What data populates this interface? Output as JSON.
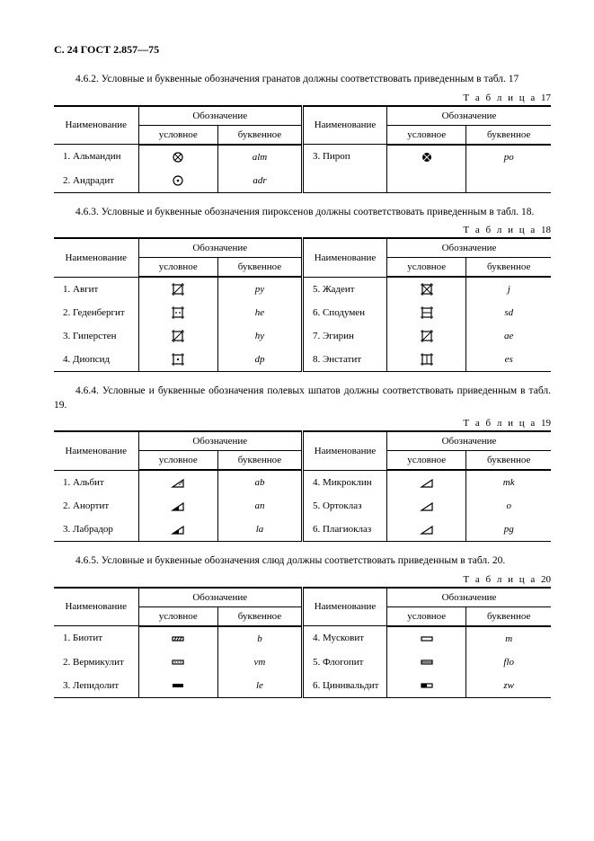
{
  "pageHeader": "С. 24 ГОСТ 2.857—75",
  "sections": [
    {
      "para": "4.6.2. Условные и буквенные обозначения гранатов должны соответствовать приведенным в табл. 17",
      "tableLabel": "Т а б л и ц а",
      "tableNum": "17",
      "headers": {
        "name": "Наименование",
        "group": "Обозначение",
        "cond": "условное",
        "letter": "буквенное"
      },
      "left": [
        {
          "name": "1. Альмандин",
          "sym": "alm-sym",
          "letter": "alm"
        },
        {
          "name": "2. Андрадит",
          "sym": "adr-sym",
          "letter": "adr"
        }
      ],
      "right": [
        {
          "name": "3. Пироп",
          "sym": "po-sym",
          "letter": "po"
        }
      ]
    },
    {
      "para": "4.6.3. Условные и буквенные обозначения пироксенов должны соответствовать приведенным в табл. 18.",
      "tableLabel": "Т а б л и ц а",
      "tableNum": "18",
      "headers": {
        "name": "Наименование",
        "group": "Обозначение",
        "cond": "условное",
        "letter": "буквенное"
      },
      "left": [
        {
          "name": "1. Авгит",
          "sym": "py-sym",
          "letter": "py"
        },
        {
          "name": "2. Геденбергит",
          "sym": "he-sym",
          "letter": "he"
        },
        {
          "name": "3. Гиперстен",
          "sym": "hy-sym",
          "letter": "hy"
        },
        {
          "name": "4. Диопсид",
          "sym": "dp-sym",
          "letter": "dp"
        }
      ],
      "right": [
        {
          "name": "5. Жадеит",
          "sym": "j-sym",
          "letter": "j"
        },
        {
          "name": "6. Сподумен",
          "sym": "sd-sym",
          "letter": "sd"
        },
        {
          "name": "7. Эгирин",
          "sym": "ae-sym",
          "letter": "ae"
        },
        {
          "name": "8. Энстатит",
          "sym": "es-sym",
          "letter": "es"
        }
      ]
    },
    {
      "para": "4.6.4. Условные и буквенные обозначения полевых шпатов должны соответствовать приведенным в табл. 19.",
      "tableLabel": "Т а б л и ц а",
      "tableNum": "19",
      "headers": {
        "name": "Наименование",
        "group": "Обозначение",
        "cond": "условное",
        "letter": "буквенное"
      },
      "left": [
        {
          "name": "1. Альбит",
          "sym": "ab-sym",
          "letter": "ab"
        },
        {
          "name": "2. Анортит",
          "sym": "an-sym",
          "letter": "an"
        },
        {
          "name": "3. Лабрадор",
          "sym": "la-sym",
          "letter": "la"
        }
      ],
      "right": [
        {
          "name": "4. Микроклин",
          "sym": "mk-sym",
          "letter": "mk"
        },
        {
          "name": "5. Ортоклаз",
          "sym": "o-sym",
          "letter": "o"
        },
        {
          "name": "6. Плагиоклаз",
          "sym": "pg-sym",
          "letter": "pg"
        }
      ]
    },
    {
      "para": "4.6.5. Условные и буквенные обозначения слюд должны соответствовать приведенным в табл. 20.",
      "tableLabel": "Т а б л и ц а",
      "tableNum": "20",
      "headers": {
        "name": "Наименование",
        "group": "Обозначение",
        "cond": "условное",
        "letter": "буквенное"
      },
      "left": [
        {
          "name": "1. Биотит",
          "sym": "b-sym",
          "letter": "b"
        },
        {
          "name": "2. Вермикулит",
          "sym": "vm-sym",
          "letter": "vm"
        },
        {
          "name": "3. Лепидолит",
          "sym": "le-sym",
          "letter": "le"
        }
      ],
      "right": [
        {
          "name": "4. Мусковит",
          "sym": "m-sym",
          "letter": "m"
        },
        {
          "name": "5. Флогопит",
          "sym": "flo-sym",
          "letter": "flo"
        },
        {
          "name": "6. Циннвальдит",
          "sym": "zw-sym",
          "letter": "zw"
        }
      ]
    }
  ],
  "colors": {
    "text": "#000000",
    "background": "#ffffff",
    "rule": "#000000"
  },
  "fonts": {
    "body_family": "Times New Roman",
    "body_size_pt": 9,
    "header_size_pt": 9
  },
  "symbols": {
    "alm-sym": "circle-cross-dot",
    "adr-sym": "circle-dots",
    "po-sym": "circle-cross-filled",
    "py-sym": "square-tick-diag",
    "he-sym": "square-tick-dots",
    "hy-sym": "square-tick-diag2",
    "dp-sym": "square-tick-dot",
    "j-sym": "square-tick-hatch",
    "sd-sym": "square-tick-hbar",
    "ae-sym": "square-tick-diag3",
    "es-sym": "square-tick-vbar",
    "ab-sym": "triangle-dots",
    "an-sym": "triangle-fill-left",
    "la-sym": "triangle-fill-left2",
    "mk-sym": "triangle-outline",
    "o-sym": "triangle-outline2",
    "pg-sym": "triangle-outline3",
    "b-sym": "bar-hatch",
    "vm-sym": "bar-dots",
    "le-sym": "bar-solid",
    "m-sym": "bar-outline",
    "flo-sym": "bar-stack",
    "zw-sym": "bar-half"
  }
}
